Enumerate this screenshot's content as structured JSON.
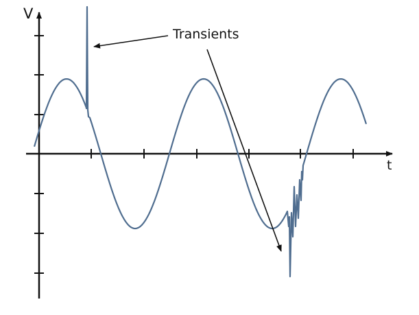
{
  "axes": {
    "y_label": "V",
    "x_label": "t"
  },
  "annotation": {
    "label": "Transients"
  },
  "colors": {
    "waveform": "#4f6d8f",
    "axes": "#111111"
  },
  "waveform": {
    "type": "sine",
    "transient_count": 2
  }
}
